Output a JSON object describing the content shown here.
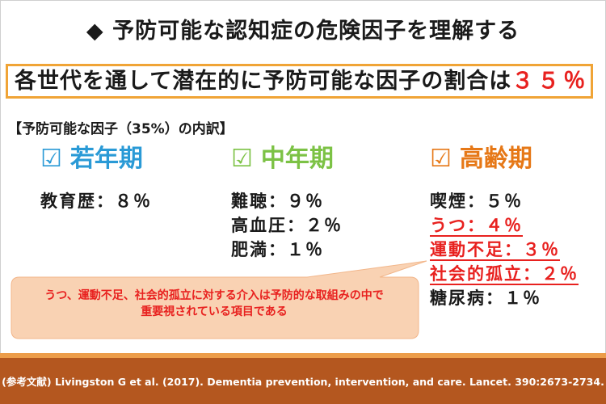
{
  "title": "◆ 予防可能な認知症の危険因子を理解する",
  "summary": {
    "text": "各世代を通して潜在的に予防可能な因子の割合は",
    "percent": "３５％"
  },
  "breakdown_label": "【予防可能な因子（35%）の内訳】",
  "columns": {
    "young": {
      "check": "☑",
      "title": "若年期",
      "items": [
        "教育歴：８％"
      ]
    },
    "middle": {
      "check": "☑",
      "title": "中年期",
      "items": [
        "難聴：９％",
        "高血圧：２％",
        "肥満：１％"
      ]
    },
    "old": {
      "check": "☑",
      "title": "高齢期",
      "items": [
        "喫煙：５％",
        "うつ：４％",
        "運動不足：３％",
        "社会的孤立：２％",
        "糖尿病：１％"
      ]
    }
  },
  "callout": {
    "line1": "うつ、運動不足、社会的孤立に対する介入は予防的な取組みの中で",
    "line2": "重要視されている項目である"
  },
  "footer": "(参考文献) Livingston G et al. (2017). Dementia prevention, intervention, and care. Lancet. 390:2673-2734.",
  "colors": {
    "young": "#2a9ad6",
    "middle": "#7cc245",
    "old": "#e67817",
    "highlight": "#e8211f",
    "border": "#f0a436",
    "callout_fill": "#f9d2b3",
    "footer_bg": "#b4571f",
    "footer_top": "#ec9d4a"
  }
}
